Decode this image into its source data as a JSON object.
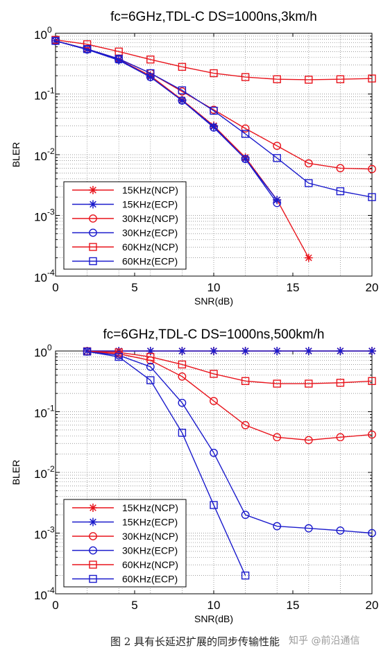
{
  "figure_caption": "图 2 具有长延迟扩展的同步传输性能",
  "watermark": "知乎 @前沿通信",
  "colors": {
    "red": "#e8141c",
    "blue": "#1a1acc",
    "grid": "#7a7a7a"
  },
  "chart_data": [
    {
      "type": "line",
      "title": "fc=6GHz,TDL-C DS=1000ns,3km/h",
      "xlabel": "SNR(dB)",
      "ylabel": "BLER",
      "xlim": [
        0,
        20
      ],
      "ylim": [
        0.0001,
        1
      ],
      "yscale": "log",
      "x_ticks": [
        "0",
        "5",
        "10",
        "15",
        "20"
      ],
      "y_ticks": [
        {
          "base": "10",
          "exp": "0"
        },
        {
          "base": "10",
          "exp": "-1"
        },
        {
          "base": "10",
          "exp": "-2"
        },
        {
          "base": "10",
          "exp": "-3"
        },
        {
          "base": "10",
          "exp": "-4"
        }
      ],
      "grid": true,
      "legend_position": "bottom-left",
      "series": [
        {
          "name": "15KHz(NCP)",
          "color": "#e8141c",
          "marker": "asterisk",
          "x": [
            0,
            2,
            4,
            6,
            8,
            10,
            12,
            14,
            16
          ],
          "y": [
            0.75,
            0.55,
            0.37,
            0.2,
            0.08,
            0.03,
            0.009,
            0.0018,
            0.0002
          ]
        },
        {
          "name": "15KHz(ECP)",
          "color": "#1a1acc",
          "marker": "asterisk",
          "x": [
            0,
            2,
            4,
            6,
            8,
            10,
            12,
            14
          ],
          "y": [
            0.75,
            0.54,
            0.36,
            0.19,
            0.078,
            0.029,
            0.0085,
            0.0018
          ]
        },
        {
          "name": "30KHz(NCP)",
          "color": "#e8141c",
          "marker": "circle",
          "x": [
            0,
            2,
            4,
            6,
            8,
            10,
            12,
            14,
            16,
            18,
            20
          ],
          "y": [
            0.75,
            0.55,
            0.38,
            0.22,
            0.11,
            0.055,
            0.027,
            0.014,
            0.0072,
            0.006,
            0.0058
          ]
        },
        {
          "name": "30KHz(ECP)",
          "color": "#1a1acc",
          "marker": "circle",
          "x": [
            0,
            2,
            4,
            6,
            8,
            10,
            12,
            14
          ],
          "y": [
            0.75,
            0.54,
            0.37,
            0.19,
            0.078,
            0.028,
            0.0085,
            0.0016
          ]
        },
        {
          "name": "60KHz(NCP)",
          "color": "#e8141c",
          "marker": "square",
          "x": [
            0,
            2,
            4,
            6,
            8,
            10,
            12,
            14,
            16,
            18,
            20
          ],
          "y": [
            0.78,
            0.66,
            0.5,
            0.37,
            0.28,
            0.22,
            0.19,
            0.175,
            0.172,
            0.175,
            0.18
          ]
        },
        {
          "name": "60KHz(ECP)",
          "color": "#1a1acc",
          "marker": "square",
          "x": [
            0,
            2,
            4,
            6,
            8,
            10,
            12,
            14,
            16,
            18,
            20
          ],
          "y": [
            0.75,
            0.55,
            0.38,
            0.22,
            0.115,
            0.053,
            0.022,
            0.0088,
            0.0034,
            0.0025,
            0.002
          ]
        }
      ]
    },
    {
      "type": "line",
      "title": "fc=6GHz,TDL-C DS=1000ns,500km/h",
      "xlabel": "SNR(dB)",
      "ylabel": "BLER",
      "xlim": [
        0,
        20
      ],
      "ylim": [
        0.0001,
        1
      ],
      "yscale": "log",
      "x_ticks": [
        "0",
        "5",
        "10",
        "15",
        "20"
      ],
      "y_ticks": [
        {
          "base": "10",
          "exp": "0"
        },
        {
          "base": "10",
          "exp": "-1"
        },
        {
          "base": "10",
          "exp": "-2"
        },
        {
          "base": "10",
          "exp": "-3"
        },
        {
          "base": "10",
          "exp": "-4"
        }
      ],
      "grid": true,
      "legend_position": "bottom-left",
      "series": [
        {
          "name": "15KHz(NCP)",
          "color": "#e8141c",
          "marker": "asterisk",
          "x": [
            2,
            4,
            6,
            8,
            10,
            12,
            14,
            16,
            18,
            20
          ],
          "y": [
            1,
            1,
            1,
            1,
            1,
            1,
            1,
            1,
            1,
            1
          ]
        },
        {
          "name": "15KHz(ECP)",
          "color": "#1a1acc",
          "marker": "asterisk",
          "x": [
            2,
            4,
            6,
            8,
            10,
            12,
            14,
            16,
            18,
            20
          ],
          "y": [
            1,
            1,
            1,
            1,
            1,
            1,
            1,
            1,
            1,
            1
          ]
        },
        {
          "name": "30KHz(NCP)",
          "color": "#e8141c",
          "marker": "circle",
          "x": [
            2,
            4,
            6,
            8,
            10,
            12,
            14,
            16,
            18,
            20
          ],
          "y": [
            0.98,
            0.9,
            0.7,
            0.38,
            0.15,
            0.06,
            0.038,
            0.034,
            0.038,
            0.042
          ]
        },
        {
          "name": "30KHz(ECP)",
          "color": "#1a1acc",
          "marker": "circle",
          "x": [
            2,
            4,
            6,
            8,
            10,
            12,
            14,
            16,
            18,
            20
          ],
          "y": [
            0.98,
            0.85,
            0.55,
            0.14,
            0.021,
            0.002,
            0.0013,
            0.0012,
            0.0011,
            0.001
          ]
        },
        {
          "name": "60KHz(NCP)",
          "color": "#e8141c",
          "marker": "square",
          "x": [
            2,
            4,
            6,
            8,
            10,
            12,
            14,
            16,
            18,
            20
          ],
          "y": [
            0.99,
            0.95,
            0.8,
            0.6,
            0.42,
            0.32,
            0.29,
            0.29,
            0.3,
            0.32
          ]
        },
        {
          "name": "60KHz(ECP)",
          "color": "#1a1acc",
          "marker": "square",
          "x": [
            2,
            4,
            6,
            8,
            10,
            12
          ],
          "y": [
            0.98,
            0.8,
            0.33,
            0.045,
            0.0029,
            0.0002
          ]
        }
      ]
    }
  ]
}
